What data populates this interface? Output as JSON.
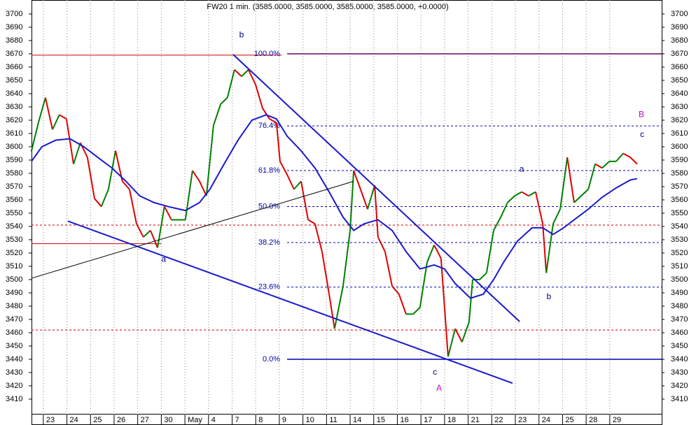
{
  "chart_data": {
    "type": "line",
    "title": "FW20 1 min. (3585.0000, 3585.0000, 3585.0000, 3585.0000, +0.0000)",
    "xlim": [
      -0.5,
      26.2
    ],
    "ylim": [
      3398.4,
      3710.5
    ],
    "yticks": [
      3410,
      3420,
      3430,
      3440,
      3450,
      3460,
      3470,
      3480,
      3490,
      3500,
      3510,
      3520,
      3530,
      3540,
      3550,
      3560,
      3570,
      3580,
      3590,
      3600,
      3610,
      3620,
      3630,
      3640,
      3650,
      3660,
      3670,
      3680,
      3690,
      3700
    ],
    "xticks": [
      {
        "value": 0,
        "label": "23"
      },
      {
        "value": 1,
        "label": "24"
      },
      {
        "value": 2,
        "label": "25"
      },
      {
        "value": 3,
        "label": "26"
      },
      {
        "value": 4,
        "label": "27"
      },
      {
        "value": 5,
        "label": "30"
      },
      {
        "value": 6,
        "label": "May"
      },
      {
        "value": 7,
        "label": "4"
      },
      {
        "value": 8,
        "label": "7"
      },
      {
        "value": 9,
        "label": "8"
      },
      {
        "value": 10,
        "label": "9"
      },
      {
        "value": 11,
        "label": "10"
      },
      {
        "value": 12,
        "label": "11"
      },
      {
        "value": 13,
        "label": "14"
      },
      {
        "value": 14,
        "label": "15"
      },
      {
        "value": 15,
        "label": "16"
      },
      {
        "value": 16,
        "label": "17"
      },
      {
        "value": 17,
        "label": "18"
      },
      {
        "value": 18,
        "label": "21"
      },
      {
        "value": 19,
        "label": "22"
      },
      {
        "value": 20,
        "label": "23"
      },
      {
        "value": 21,
        "label": "24"
      },
      {
        "value": 22,
        "label": "25"
      },
      {
        "value": 23,
        "label": "28"
      },
      {
        "value": 24,
        "label": "29"
      }
    ],
    "price": {
      "color_up": "#008000",
      "color_down": "#e00000",
      "x": [
        -0.5,
        -0.21,
        0.09,
        0.39,
        0.68,
        0.98,
        1.28,
        1.57,
        1.87,
        2.17,
        2.46,
        2.76,
        3.06,
        3.35,
        3.65,
        3.95,
        4.24,
        4.54,
        4.84,
        5.13,
        5.43,
        5.73,
        6.02,
        6.32,
        6.62,
        6.91,
        7.21,
        7.51,
        7.8,
        8.1,
        8.4,
        8.69,
        8.99,
        9.29,
        9.58,
        9.88,
        10.03,
        10.33,
        10.62,
        10.92,
        11.22,
        11.51,
        11.81,
        12.11,
        12.34,
        12.7,
        13.0,
        13.15,
        13.44,
        13.74,
        14.04,
        14.18,
        14.48,
        14.78,
        15.07,
        15.37,
        15.67,
        15.96,
        16.26,
        16.56,
        16.85,
        17.0,
        17.15,
        17.45,
        17.74,
        18.04,
        18.19,
        18.49,
        18.78,
        19.08,
        19.38,
        19.67,
        19.97,
        20.27,
        20.56,
        20.86,
        21.16,
        21.31,
        21.6,
        21.9,
        22.2,
        22.49,
        22.79,
        23.09,
        23.38,
        23.68,
        23.98,
        24.27,
        24.57,
        24.87,
        25.16
      ],
      "values": [
        3597,
        3618,
        3637,
        3613,
        3624,
        3621,
        3587,
        3603,
        3592,
        3561,
        3555,
        3568,
        3597,
        3574,
        3568,
        3542,
        3532,
        3537,
        3524,
        3555,
        3545,
        3545,
        3545,
        3582,
        3574,
        3563,
        3616,
        3632,
        3637,
        3658,
        3653,
        3658,
        3647,
        3629,
        3621,
        3618,
        3589,
        3579,
        3568,
        3574,
        3545,
        3542,
        3521,
        3489,
        3463,
        3495,
        3537,
        3582,
        3568,
        3553,
        3571,
        3532,
        3521,
        3495,
        3489,
        3474,
        3474,
        3479,
        3513,
        3526,
        3516,
        3479,
        3442,
        3463,
        3453,
        3468,
        3500,
        3500,
        3505,
        3537,
        3547,
        3558,
        3563,
        3566,
        3563,
        3566,
        3542,
        3505,
        3542,
        3553,
        3592,
        3558,
        3563,
        3568,
        3587,
        3584,
        3589,
        3589,
        3595,
        3592,
        3587
      ]
    },
    "moving_average": {
      "color": "#1a1acc",
      "x": [
        -0.5,
        -0.06,
        0.53,
        1.13,
        1.72,
        2.31,
        2.91,
        3.5,
        4.09,
        4.69,
        5.28,
        6.02,
        6.62,
        7.06,
        7.66,
        8.25,
        8.84,
        9.44,
        9.88,
        10.33,
        10.92,
        11.51,
        12.11,
        12.7,
        13.15,
        13.59,
        14.18,
        14.78,
        15.37,
        15.96,
        16.56,
        17.0,
        17.45,
        18.1,
        18.64,
        19.08,
        19.5,
        20.09,
        20.71,
        21.16,
        21.6,
        22.05,
        22.49,
        23.09,
        23.68,
        24.27,
        24.87,
        25.16
      ],
      "values": [
        3589,
        3600,
        3605,
        3606,
        3600,
        3592,
        3584,
        3574,
        3563,
        3558,
        3555,
        3552,
        3558,
        3568,
        3587,
        3605,
        3620,
        3624,
        3621,
        3608,
        3597,
        3584,
        3566,
        3547,
        3537,
        3542,
        3545,
        3537,
        3521,
        3508,
        3511,
        3508,
        3497,
        3486,
        3489,
        3500,
        3513,
        3529,
        3539,
        3539,
        3534,
        3539,
        3545,
        3553,
        3562,
        3569,
        3575,
        3576
      ]
    },
    "hlines": [
      {
        "price": 3669,
        "color": "#cc0000",
        "style": "solid",
        "from": -0.5,
        "to": 10.1
      },
      {
        "price": 3527,
        "color": "#cc0000",
        "style": "solid",
        "from": -0.5,
        "to": 5.0
      },
      {
        "price": 3541,
        "color": "#cc0000",
        "style": "dashed",
        "from": -0.5,
        "to": 26.2
      },
      {
        "price": 3462,
        "color": "#cc0000",
        "style": "dashed",
        "from": -0.5,
        "to": 26.2
      }
    ],
    "fib_levels": [
      {
        "label": "100.0%",
        "price": 3670,
        "color": "#660066",
        "style": "solid"
      },
      {
        "label": "76.4%",
        "price": 3615.7,
        "color": "#0000aa",
        "style": "dashed"
      },
      {
        "label": "61.8%",
        "price": 3582.1,
        "color": "#0000aa",
        "style": "dashed"
      },
      {
        "label": "50.0%",
        "price": 3555,
        "color": "#0000aa",
        "style": "dashed"
      },
      {
        "label": "38.2%",
        "price": 3527.9,
        "color": "#0000aa",
        "style": "dashed"
      },
      {
        "label": "23.6%",
        "price": 3494.3,
        "color": "#0000aa",
        "style": "dashed"
      },
      {
        "label": "0.0%",
        "price": 3440,
        "color": "#0000aa",
        "style": "solid"
      }
    ],
    "fib_from": 10.33,
    "trendlines": [
      {
        "x": [
          1.04,
          19.88
        ],
        "values": [
          3544,
          3422
        ],
        "color": "#1a1acc",
        "width": 2
      },
      {
        "x": [
          8.04,
          20.18
        ],
        "values": [
          3669.5,
          3468.4
        ],
        "color": "#1a1acc",
        "width": 2
      },
      {
        "x": [
          -0.5,
          13.15
        ],
        "values": [
          3501,
          3574
        ],
        "color": "#000000",
        "width": 1
      }
    ],
    "annotations": [
      {
        "text": "b",
        "x": 8.4,
        "price": 3684,
        "color": "#000080"
      },
      {
        "text": "a",
        "x": 5.1,
        "price": 3515,
        "color": "#000080"
      },
      {
        "text": "c",
        "x": 16.59,
        "price": 3430,
        "color": "#000080"
      },
      {
        "text": "A",
        "x": 16.77,
        "price": 3418,
        "color": "#cc00cc"
      },
      {
        "text": "a",
        "x": 20.27,
        "price": 3583,
        "color": "#000080"
      },
      {
        "text": "b",
        "x": 21.42,
        "price": 3487,
        "color": "#000080"
      },
      {
        "text": "B",
        "x": 25.34,
        "price": 3624,
        "color": "#cc00cc"
      },
      {
        "text": "c",
        "x": 25.37,
        "price": 3609,
        "color": "#000080"
      }
    ]
  }
}
